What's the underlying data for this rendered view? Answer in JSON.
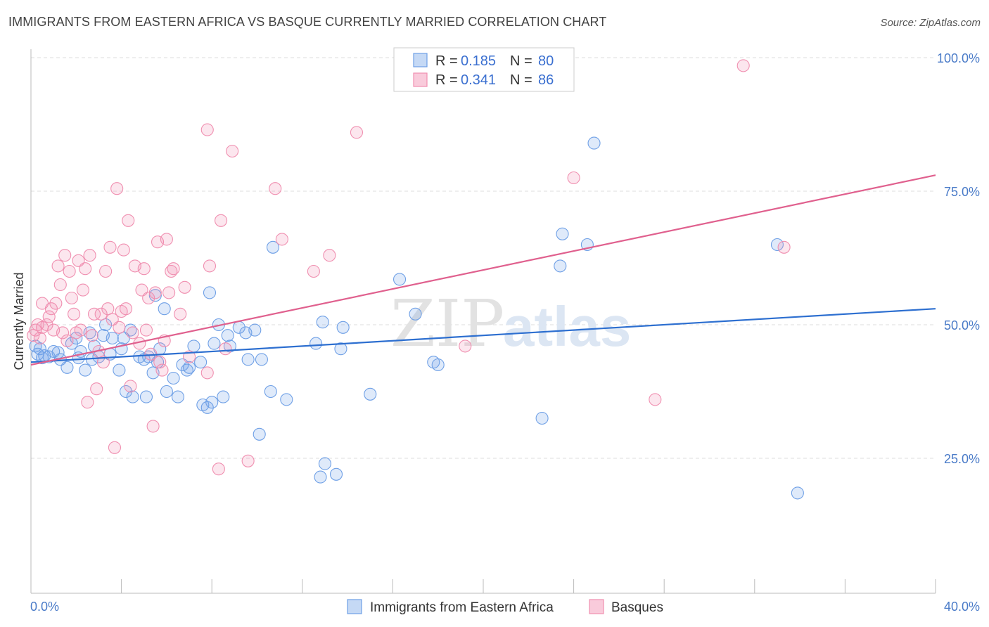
{
  "title": "IMMIGRANTS FROM EASTERN AFRICA VS BASQUE CURRENTLY MARRIED CORRELATION CHART",
  "source": "Source: ZipAtlas.com",
  "watermark": {
    "zip": "ZIP",
    "atlas": "atlas"
  },
  "legend": {
    "r_label": "R =",
    "n_label": "N =",
    "series": [
      {
        "r": "0.185",
        "n": "80"
      },
      {
        "r": "0.341",
        "n": "86"
      }
    ]
  },
  "chart_data": {
    "type": "scatter",
    "title": "IMMIGRANTS FROM EASTERN AFRICA VS BASQUE CURRENTLY MARRIED CORRELATION CHART",
    "xlabel": "",
    "ylabel": "Currently Married",
    "xlim": [
      0,
      40
    ],
    "ylim": [
      0,
      105
    ],
    "x_tick_labels": [
      "0.0%",
      "40.0%"
    ],
    "y_ticks": [
      25,
      50,
      75,
      100
    ],
    "y_tick_labels": [
      "25.0%",
      "50.0%",
      "75.0%",
      "100.0%"
    ],
    "grid": true,
    "legend_position": "top-center",
    "series": [
      {
        "name": "Immigrants from Eastern Africa",
        "color": "#6fa0e6",
        "line_color": "#2d6fd0",
        "r": 0.185,
        "n": 80,
        "trend": [
          [
            0,
            43.0
          ],
          [
            40,
            53.0
          ]
        ],
        "points": [
          [
            0.2,
            46.0
          ],
          [
            0.3,
            44.5
          ],
          [
            0.4,
            45.5
          ],
          [
            0.5,
            43.8
          ],
          [
            0.6,
            44.2
          ],
          [
            0.8,
            44.0
          ],
          [
            1.0,
            45.0
          ],
          [
            1.2,
            44.8
          ],
          [
            1.3,
            43.5
          ],
          [
            1.6,
            42.0
          ],
          [
            1.8,
            46.5
          ],
          [
            2.0,
            47.5
          ],
          [
            2.1,
            43.8
          ],
          [
            2.2,
            45.0
          ],
          [
            2.4,
            41.5
          ],
          [
            2.6,
            48.5
          ],
          [
            2.7,
            43.5
          ],
          [
            2.8,
            46.0
          ],
          [
            3.0,
            44.0
          ],
          [
            3.2,
            48.0
          ],
          [
            3.3,
            50.0
          ],
          [
            3.5,
            44.5
          ],
          [
            3.6,
            47.5
          ],
          [
            3.9,
            41.5
          ],
          [
            4.0,
            45.5
          ],
          [
            4.1,
            47.5
          ],
          [
            4.2,
            37.5
          ],
          [
            4.4,
            49.0
          ],
          [
            4.5,
            36.5
          ],
          [
            4.8,
            44.0
          ],
          [
            5.0,
            43.5
          ],
          [
            5.1,
            36.5
          ],
          [
            5.2,
            44.0
          ],
          [
            5.4,
            41.0
          ],
          [
            5.5,
            55.5
          ],
          [
            5.6,
            43.0
          ],
          [
            5.7,
            45.5
          ],
          [
            5.9,
            53.0
          ],
          [
            6.0,
            37.5
          ],
          [
            6.3,
            40.0
          ],
          [
            6.5,
            36.5
          ],
          [
            6.7,
            42.5
          ],
          [
            6.9,
            41.5
          ],
          [
            7.0,
            42.0
          ],
          [
            7.2,
            46.0
          ],
          [
            7.5,
            43.0
          ],
          [
            7.6,
            35.0
          ],
          [
            7.8,
            34.5
          ],
          [
            7.9,
            56.0
          ],
          [
            8.0,
            35.5
          ],
          [
            8.1,
            46.5
          ],
          [
            8.3,
            50.0
          ],
          [
            8.5,
            36.5
          ],
          [
            8.7,
            48.0
          ],
          [
            8.8,
            46.0
          ],
          [
            9.2,
            49.5
          ],
          [
            9.5,
            48.5
          ],
          [
            9.6,
            43.5
          ],
          [
            9.9,
            49.0
          ],
          [
            10.1,
            29.5
          ],
          [
            10.2,
            43.5
          ],
          [
            10.6,
            37.5
          ],
          [
            10.7,
            64.5
          ],
          [
            11.3,
            36.0
          ],
          [
            12.6,
            46.5
          ],
          [
            12.8,
            21.5
          ],
          [
            12.9,
            50.5
          ],
          [
            13.0,
            24.0
          ],
          [
            13.5,
            22.0
          ],
          [
            13.7,
            45.5
          ],
          [
            13.8,
            49.5
          ],
          [
            15.0,
            37.0
          ],
          [
            16.3,
            58.5
          ],
          [
            17.0,
            52.0
          ],
          [
            17.8,
            43.0
          ],
          [
            18.0,
            42.5
          ],
          [
            22.6,
            32.5
          ],
          [
            23.4,
            61.0
          ],
          [
            23.5,
            67.0
          ],
          [
            24.6,
            65.0
          ],
          [
            24.9,
            84.0
          ],
          [
            33.0,
            65.0
          ],
          [
            33.9,
            18.5
          ]
        ]
      },
      {
        "name": "Basques",
        "color": "#f08fb0",
        "line_color": "#e0608e",
        "r": 0.341,
        "n": 86,
        "trend": [
          [
            0,
            42.5
          ],
          [
            40,
            78.0
          ]
        ],
        "points": [
          [
            0.1,
            48.0
          ],
          [
            0.2,
            49.0
          ],
          [
            0.3,
            50.0
          ],
          [
            0.4,
            47.5
          ],
          [
            0.5,
            49.5
          ],
          [
            0.5,
            54.0
          ],
          [
            0.7,
            50.0
          ],
          [
            0.8,
            51.5
          ],
          [
            0.9,
            53.0
          ],
          [
            1.0,
            49.0
          ],
          [
            1.1,
            54.0
          ],
          [
            1.2,
            61.0
          ],
          [
            1.3,
            57.5
          ],
          [
            1.4,
            48.5
          ],
          [
            1.5,
            63.0
          ],
          [
            1.6,
            47.0
          ],
          [
            1.7,
            60.0
          ],
          [
            1.8,
            55.0
          ],
          [
            1.9,
            52.0
          ],
          [
            2.0,
            48.5
          ],
          [
            2.1,
            62.0
          ],
          [
            2.2,
            49.0
          ],
          [
            2.3,
            56.5
          ],
          [
            2.4,
            60.5
          ],
          [
            2.5,
            35.5
          ],
          [
            2.6,
            63.0
          ],
          [
            2.7,
            48.0
          ],
          [
            2.8,
            52.0
          ],
          [
            2.9,
            38.0
          ],
          [
            3.0,
            45.0
          ],
          [
            3.1,
            52.0
          ],
          [
            3.2,
            43.0
          ],
          [
            3.3,
            60.0
          ],
          [
            3.4,
            53.0
          ],
          [
            3.5,
            64.5
          ],
          [
            3.6,
            51.0
          ],
          [
            3.7,
            27.0
          ],
          [
            3.8,
            75.5
          ],
          [
            3.9,
            49.5
          ],
          [
            4.0,
            52.5
          ],
          [
            4.1,
            64.0
          ],
          [
            4.2,
            53.0
          ],
          [
            4.3,
            69.5
          ],
          [
            4.4,
            38.5
          ],
          [
            4.5,
            48.5
          ],
          [
            4.6,
            61.0
          ],
          [
            4.8,
            46.5
          ],
          [
            4.9,
            56.5
          ],
          [
            5.0,
            60.5
          ],
          [
            5.1,
            49.0
          ],
          [
            5.2,
            55.0
          ],
          [
            5.3,
            44.5
          ],
          [
            5.4,
            31.0
          ],
          [
            5.5,
            56.0
          ],
          [
            5.6,
            65.5
          ],
          [
            5.7,
            43.0
          ],
          [
            5.8,
            41.5
          ],
          [
            5.9,
            47.0
          ],
          [
            6.0,
            66.0
          ],
          [
            6.1,
            56.0
          ],
          [
            6.2,
            60.0
          ],
          [
            6.3,
            60.5
          ],
          [
            6.6,
            52.0
          ],
          [
            6.8,
            57.0
          ],
          [
            7.0,
            44.0
          ],
          [
            7.8,
            41.0
          ],
          [
            7.8,
            86.5
          ],
          [
            7.9,
            61.0
          ],
          [
            8.3,
            23.0
          ],
          [
            8.4,
            69.5
          ],
          [
            8.6,
            45.5
          ],
          [
            8.9,
            82.5
          ],
          [
            9.6,
            24.5
          ],
          [
            10.8,
            75.5
          ],
          [
            11.1,
            66.0
          ],
          [
            12.5,
            60.0
          ],
          [
            13.2,
            63.0
          ],
          [
            14.4,
            86.0
          ],
          [
            19.2,
            46.0
          ],
          [
            24.0,
            77.5
          ],
          [
            27.6,
            36.0
          ],
          [
            31.5,
            98.5
          ],
          [
            33.3,
            64.5
          ]
        ]
      }
    ]
  },
  "bottom_legend": [
    {
      "label": "Immigrants from Eastern Africa"
    },
    {
      "label": "Basques"
    }
  ]
}
